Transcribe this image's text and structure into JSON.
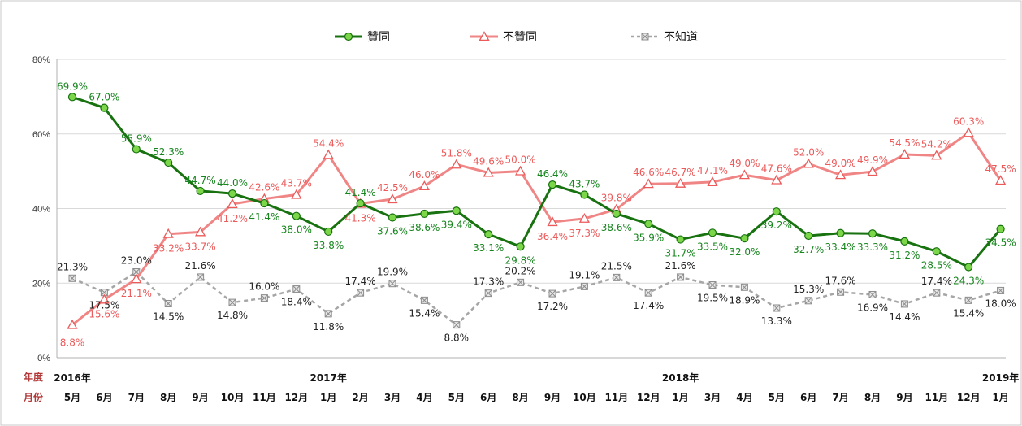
{
  "chart_data": {
    "type": "line",
    "title": "",
    "ylim": [
      0,
      80
    ],
    "y_ticks": [
      "0%",
      "20%",
      "40%",
      "60%",
      "80%"
    ],
    "grid": true,
    "legend_position": "top-center",
    "row_headers": {
      "year": "年度",
      "month": "月份"
    },
    "categories": [
      "5月",
      "6月",
      "7月",
      "8月",
      "9月",
      "10月",
      "11月",
      "12月",
      "1月",
      "2月",
      "3月",
      "4月",
      "5月",
      "6月",
      "8月",
      "9月",
      "10月",
      "11月",
      "12月",
      "1月",
      "3月",
      "4月",
      "5月",
      "6月",
      "7月",
      "8月",
      "9月",
      "11月",
      "12月",
      "1月"
    ],
    "year_labels": [
      {
        "index": 0,
        "label": "2016年"
      },
      {
        "index": 8,
        "label": "2017年"
      },
      {
        "index": 19,
        "label": "2018年"
      },
      {
        "index": 29,
        "label": "2019年"
      }
    ],
    "series": [
      {
        "name": "贊同",
        "color": "#17720f",
        "marker": "circle",
        "values": [
          69.9,
          67.0,
          55.9,
          52.3,
          44.7,
          44.0,
          41.4,
          38.0,
          33.8,
          41.4,
          37.6,
          38.6,
          39.4,
          33.1,
          29.8,
          46.4,
          43.7,
          38.6,
          35.9,
          31.7,
          33.5,
          32.0,
          39.2,
          32.7,
          33.4,
          33.3,
          31.2,
          28.5,
          24.3,
          34.5
        ],
        "labels": [
          "69.9%",
          "67.0%",
          "55.9%",
          "52.3%",
          "44.7%",
          "44.0%",
          "41.4%",
          "38.0%",
          "33.8%",
          "41.4%",
          "37.6%",
          "38.6%",
          "39.4%",
          "33.1%",
          "29.8%",
          "46.4%",
          "43.7%",
          "38.6%",
          "35.9%",
          "31.7%",
          "33.5%",
          "32.0%",
          "39.2%",
          "32.7%",
          "33.4%",
          "33.3%",
          "31.2%",
          "28.5%",
          "24.3%",
          "34.5%"
        ]
      },
      {
        "name": "不贊同",
        "color": "#f08585",
        "marker": "triangle",
        "values": [
          8.8,
          15.6,
          21.1,
          33.2,
          33.7,
          41.2,
          42.6,
          43.7,
          54.4,
          41.3,
          42.5,
          46.0,
          51.8,
          49.6,
          50.0,
          36.4,
          37.3,
          39.8,
          46.6,
          46.7,
          47.1,
          49.0,
          47.6,
          52.0,
          49.0,
          49.9,
          54.5,
          54.2,
          60.3,
          47.5
        ],
        "labels": [
          "8.8%",
          "15.6%",
          "21.1%",
          "33.2%",
          "33.7%",
          "41.2%",
          "42.6%",
          "43.7%",
          "54.4%",
          "41.3%",
          "42.5%",
          "46.0%",
          "51.8%",
          "49.6%",
          "50.0%",
          "36.4%",
          "37.3%",
          "39.8%",
          "46.6%",
          "46.7%",
          "47.1%",
          "49.0%",
          "47.6%",
          "52.0%",
          "49.0%",
          "49.9%",
          "54.5%",
          "54.2%",
          "60.3%",
          "47.5%"
        ]
      },
      {
        "name": "不知道",
        "color": "#a6a6a6",
        "marker": "x-square",
        "values": [
          21.3,
          17.5,
          23.0,
          14.5,
          21.6,
          14.8,
          16.0,
          18.4,
          11.8,
          17.4,
          19.9,
          15.4,
          8.8,
          17.3,
          20.2,
          17.2,
          19.1,
          21.5,
          17.4,
          21.6,
          19.5,
          18.9,
          13.3,
          15.3,
          17.6,
          16.9,
          14.4,
          17.4,
          15.4,
          18.0
        ],
        "labels": [
          "21.3%",
          "17.5%",
          "23.0%",
          "14.5%",
          "21.6%",
          "14.8%",
          "16.0%",
          "18.4%",
          "11.8%",
          "17.4%",
          "19.9%",
          "15.4%",
          "8.8%",
          "17.3%",
          "20.2%",
          "17.2%",
          "19.1%",
          "21.5%",
          "17.4%",
          "21.6%",
          "19.5%",
          "18.9%",
          "13.3%",
          "15.3%",
          "17.6%",
          "16.9%",
          "14.4%",
          "17.4%",
          "15.4%",
          "18.0%"
        ]
      }
    ]
  }
}
